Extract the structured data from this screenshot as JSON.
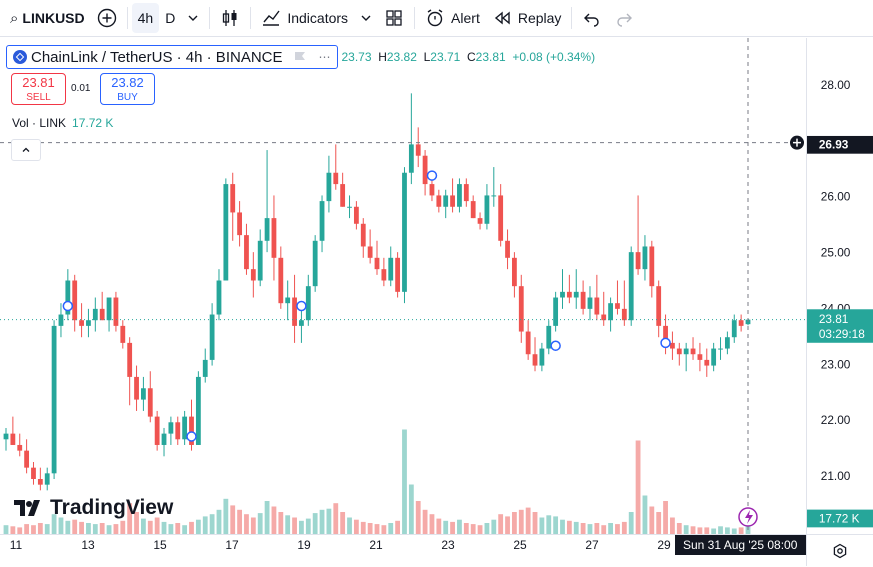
{
  "toolbar": {
    "symbol": "LINKUSD",
    "interval_active": "4h",
    "interval_other": "D",
    "indicators_label": "Indicators",
    "alert_label": "Alert",
    "replay_label": "Replay"
  },
  "legend": {
    "title": "ChainLink / TetherUS · 4h · BINANCE",
    "o_val": "23.73",
    "h_val": "23.82",
    "l_val": "23.71",
    "c_val": "23.81",
    "change": "+0.08 (+0.34%)"
  },
  "trade": {
    "sell_price": "23.81",
    "sell_label": "SELL",
    "spread": "0.01",
    "buy_price": "23.82",
    "buy_label": "BUY"
  },
  "volume": {
    "label": "Vol · LINK",
    "value": "17.72 K"
  },
  "branding": {
    "name": "TradingView"
  },
  "crosshair": {
    "price_label": "26.93",
    "time_label": "Sun 31 Aug '25",
    "time_suffix": "08:00"
  },
  "last_price": {
    "price": "23.81",
    "countdown": "03:29:18"
  },
  "volume_tag": "17.72 K",
  "colors": {
    "up": "#26a69a",
    "down": "#ef5350",
    "up_vol": "#9dd6cf",
    "down_vol": "#f5aaa8",
    "accent": "#2962ff"
  },
  "chart_data": {
    "type": "candlestick",
    "y_ticks": [
      "28.00",
      "26.00",
      "25.00",
      "24.00",
      "23.00",
      "22.00",
      "21.00"
    ],
    "x_ticks": [
      "11",
      "13",
      "15",
      "17",
      "19",
      "21",
      "23",
      "25",
      "27",
      "29"
    ],
    "ylim": [
      20.45,
      28.3
    ],
    "candles": [
      [
        21.7,
        21.9,
        21.5,
        21.8
      ],
      [
        21.8,
        22.1,
        21.6,
        21.6
      ],
      [
        21.6,
        21.8,
        21.4,
        21.5
      ],
      [
        21.5,
        21.7,
        21.1,
        21.2
      ],
      [
        21.2,
        21.3,
        20.9,
        21.0
      ],
      [
        21.0,
        21.2,
        20.8,
        20.9
      ],
      [
        20.9,
        21.2,
        20.8,
        21.1
      ],
      [
        21.1,
        23.8,
        21.0,
        23.7
      ],
      [
        23.7,
        24.1,
        23.5,
        23.9
      ],
      [
        23.9,
        24.7,
        23.8,
        24.5
      ],
      [
        24.5,
        24.6,
        23.6,
        23.8
      ],
      [
        23.8,
        24.1,
        23.5,
        23.7
      ],
      [
        23.7,
        24.0,
        23.5,
        23.8
      ],
      [
        23.8,
        24.2,
        23.6,
        24.0
      ],
      [
        24.0,
        24.3,
        23.8,
        23.8
      ],
      [
        23.8,
        24.2,
        23.6,
        24.2
      ],
      [
        24.2,
        24.3,
        23.6,
        23.7
      ],
      [
        23.7,
        23.8,
        23.3,
        23.4
      ],
      [
        23.4,
        23.5,
        22.3,
        22.8
      ],
      [
        22.8,
        23.0,
        22.2,
        22.4
      ],
      [
        22.4,
        22.8,
        22.2,
        22.6
      ],
      [
        22.6,
        22.9,
        22.0,
        22.1
      ],
      [
        22.1,
        22.2,
        21.5,
        21.6
      ],
      [
        21.6,
        21.9,
        21.4,
        21.8
      ],
      [
        21.8,
        22.1,
        21.6,
        22.0
      ],
      [
        22.0,
        22.1,
        21.6,
        21.7
      ],
      [
        21.7,
        22.2,
        21.6,
        22.1
      ],
      [
        22.1,
        22.4,
        21.5,
        21.6
      ],
      [
        21.6,
        22.9,
        21.6,
        22.8
      ],
      [
        22.8,
        23.3,
        22.7,
        23.1
      ],
      [
        23.1,
        24.1,
        23.0,
        23.9
      ],
      [
        23.9,
        24.7,
        23.8,
        24.5
      ],
      [
        24.5,
        26.3,
        24.5,
        26.2
      ],
      [
        26.2,
        26.4,
        25.2,
        25.7
      ],
      [
        25.7,
        25.9,
        25.1,
        25.3
      ],
      [
        25.3,
        25.5,
        24.6,
        24.7
      ],
      [
        24.7,
        25.0,
        24.2,
        24.5
      ],
      [
        24.5,
        25.4,
        24.4,
        25.2
      ],
      [
        25.2,
        26.8,
        25.0,
        25.6
      ],
      [
        25.6,
        26.0,
        24.5,
        24.9
      ],
      [
        24.9,
        25.1,
        24.0,
        24.1
      ],
      [
        24.1,
        24.5,
        23.8,
        24.2
      ],
      [
        24.2,
        24.6,
        23.4,
        23.7
      ],
      [
        23.7,
        24.0,
        23.4,
        23.8
      ],
      [
        23.8,
        24.6,
        23.7,
        24.4
      ],
      [
        24.4,
        25.3,
        24.3,
        25.2
      ],
      [
        25.2,
        26.0,
        25.0,
        25.9
      ],
      [
        25.9,
        26.7,
        25.7,
        26.4
      ],
      [
        26.4,
        26.9,
        26.1,
        26.2
      ],
      [
        26.2,
        26.4,
        25.8,
        25.8
      ],
      [
        25.8,
        26.0,
        25.6,
        25.8
      ],
      [
        25.8,
        25.9,
        25.4,
        25.5
      ],
      [
        25.5,
        25.6,
        24.9,
        25.1
      ],
      [
        25.1,
        25.4,
        24.8,
        24.9
      ],
      [
        24.9,
        25.2,
        24.6,
        24.7
      ],
      [
        24.7,
        24.9,
        24.4,
        24.5
      ],
      [
        24.5,
        25.1,
        24.4,
        24.9
      ],
      [
        24.9,
        25.0,
        24.2,
        24.3
      ],
      [
        24.3,
        26.5,
        24.1,
        26.4
      ],
      [
        26.4,
        27.8,
        26.2,
        26.9
      ],
      [
        26.9,
        27.2,
        26.5,
        26.7
      ],
      [
        26.7,
        26.8,
        26.0,
        26.2
      ],
      [
        26.2,
        26.4,
        25.9,
        26.0
      ],
      [
        26.0,
        26.1,
        25.7,
        25.8
      ],
      [
        25.8,
        26.1,
        25.6,
        26.0
      ],
      [
        26.0,
        26.3,
        25.7,
        25.8
      ],
      [
        25.8,
        26.3,
        25.7,
        26.2
      ],
      [
        26.2,
        26.3,
        25.8,
        25.9
      ],
      [
        25.9,
        26.0,
        25.6,
        25.6
      ],
      [
        25.6,
        25.7,
        25.4,
        25.5
      ],
      [
        25.5,
        26.2,
        25.4,
        26.0
      ],
      [
        26.0,
        26.5,
        25.8,
        26.0
      ],
      [
        26.0,
        26.2,
        25.1,
        25.2
      ],
      [
        25.2,
        25.4,
        24.7,
        24.9
      ],
      [
        24.9,
        25.0,
        24.2,
        24.4
      ],
      [
        24.4,
        24.6,
        23.4,
        23.6
      ],
      [
        23.6,
        23.8,
        23.1,
        23.2
      ],
      [
        23.2,
        23.5,
        22.9,
        23.0
      ],
      [
        23.0,
        23.4,
        22.9,
        23.3
      ],
      [
        23.3,
        23.8,
        23.2,
        23.7
      ],
      [
        23.7,
        24.3,
        23.6,
        24.2
      ],
      [
        24.2,
        24.7,
        24.0,
        24.3
      ],
      [
        24.3,
        24.6,
        24.1,
        24.2
      ],
      [
        24.2,
        24.7,
        24.0,
        24.3
      ],
      [
        24.3,
        24.5,
        23.9,
        24.0
      ],
      [
        24.0,
        24.4,
        23.8,
        24.2
      ],
      [
        24.2,
        24.6,
        23.8,
        23.9
      ],
      [
        23.9,
        24.3,
        23.7,
        23.8
      ],
      [
        23.8,
        24.2,
        23.6,
        24.1
      ],
      [
        24.1,
        24.5,
        23.9,
        24.0
      ],
      [
        24.0,
        24.5,
        23.7,
        23.8
      ],
      [
        23.8,
        25.1,
        23.7,
        25.0
      ],
      [
        25.0,
        26.0,
        24.6,
        24.7
      ],
      [
        24.7,
        25.3,
        24.5,
        25.1
      ],
      [
        25.1,
        25.2,
        24.2,
        24.4
      ],
      [
        24.4,
        24.5,
        23.5,
        23.7
      ],
      [
        23.7,
        23.9,
        23.2,
        23.4
      ],
      [
        23.4,
        23.6,
        23.1,
        23.3
      ],
      [
        23.3,
        23.4,
        23.0,
        23.2
      ],
      [
        23.2,
        23.4,
        22.9,
        23.3
      ],
      [
        23.3,
        23.5,
        23.1,
        23.2
      ],
      [
        23.2,
        23.4,
        22.9,
        23.1
      ],
      [
        23.1,
        23.3,
        22.8,
        23.0
      ],
      [
        23.0,
        23.4,
        22.9,
        23.3
      ],
      [
        23.3,
        23.5,
        23.1,
        23.3
      ],
      [
        23.3,
        23.6,
        23.2,
        23.5
      ],
      [
        23.5,
        23.9,
        23.4,
        23.8
      ],
      [
        23.8,
        23.9,
        23.6,
        23.7
      ],
      [
        23.73,
        23.82,
        23.71,
        23.81
      ]
    ],
    "volume_scale_max": 1.0,
    "volume": [
      0.08,
      0.07,
      0.06,
      0.09,
      0.08,
      0.1,
      0.09,
      0.18,
      0.15,
      0.12,
      0.13,
      0.11,
      0.1,
      0.09,
      0.1,
      0.08,
      0.09,
      0.12,
      0.28,
      0.2,
      0.14,
      0.12,
      0.15,
      0.11,
      0.09,
      0.1,
      0.08,
      0.11,
      0.13,
      0.16,
      0.18,
      0.22,
      0.32,
      0.26,
      0.22,
      0.18,
      0.15,
      0.19,
      0.3,
      0.25,
      0.2,
      0.17,
      0.15,
      0.12,
      0.14,
      0.19,
      0.22,
      0.23,
      0.28,
      0.2,
      0.15,
      0.13,
      0.11,
      0.1,
      0.09,
      0.08,
      0.1,
      0.12,
      0.95,
      0.45,
      0.3,
      0.22,
      0.18,
      0.14,
      0.12,
      0.11,
      0.13,
      0.1,
      0.09,
      0.08,
      0.1,
      0.13,
      0.18,
      0.16,
      0.2,
      0.22,
      0.24,
      0.2,
      0.15,
      0.17,
      0.16,
      0.13,
      0.12,
      0.11,
      0.1,
      0.09,
      0.1,
      0.08,
      0.1,
      0.09,
      0.11,
      0.2,
      0.85,
      0.35,
      0.25,
      0.2,
      0.3,
      0.15,
      0.1,
      0.08,
      0.07,
      0.06,
      0.06,
      0.05,
      0.07,
      0.06,
      0.05,
      0.06,
      0.07,
      0.05
    ],
    "markers": [
      {
        "i": 9,
        "price": 24.05
      },
      {
        "i": 27,
        "price": 21.75
      },
      {
        "i": 43,
        "price": 24.05
      },
      {
        "i": 62,
        "price": 26.35
      },
      {
        "i": 80,
        "price": 23.35
      },
      {
        "i": 96,
        "price": 23.4
      }
    ],
    "crosshair_price": 26.93,
    "last_price": 23.81
  }
}
